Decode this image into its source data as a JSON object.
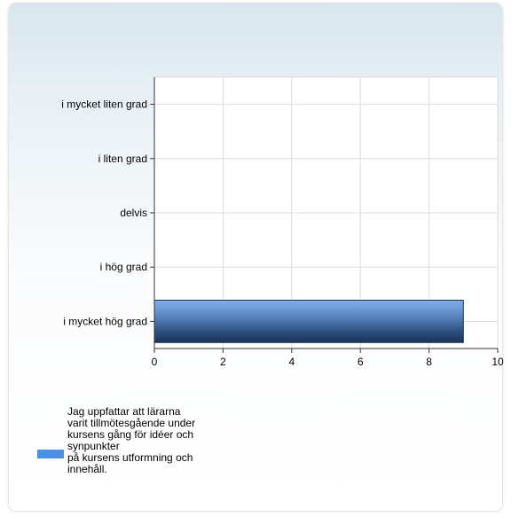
{
  "chart_data": {
    "type": "bar",
    "orientation": "horizontal",
    "categories": [
      "i mycket liten grad",
      "i liten grad",
      "delvis",
      "i hög grad",
      "i mycket hög grad"
    ],
    "series": [
      {
        "name": "Jag uppfattar att lärarna\nvarit tillmötesgående under\nkursens gång för idéer och\nsynpunkter\npå kursens utformning och\ninnehåll.",
        "values": [
          0,
          0,
          0,
          0,
          9
        ],
        "color": "#4a90e8"
      }
    ],
    "xlim": [
      0,
      10
    ],
    "xticks": [
      0,
      2,
      4,
      6,
      8,
      10
    ],
    "grid": true,
    "legend_position": "bottom-left"
  }
}
